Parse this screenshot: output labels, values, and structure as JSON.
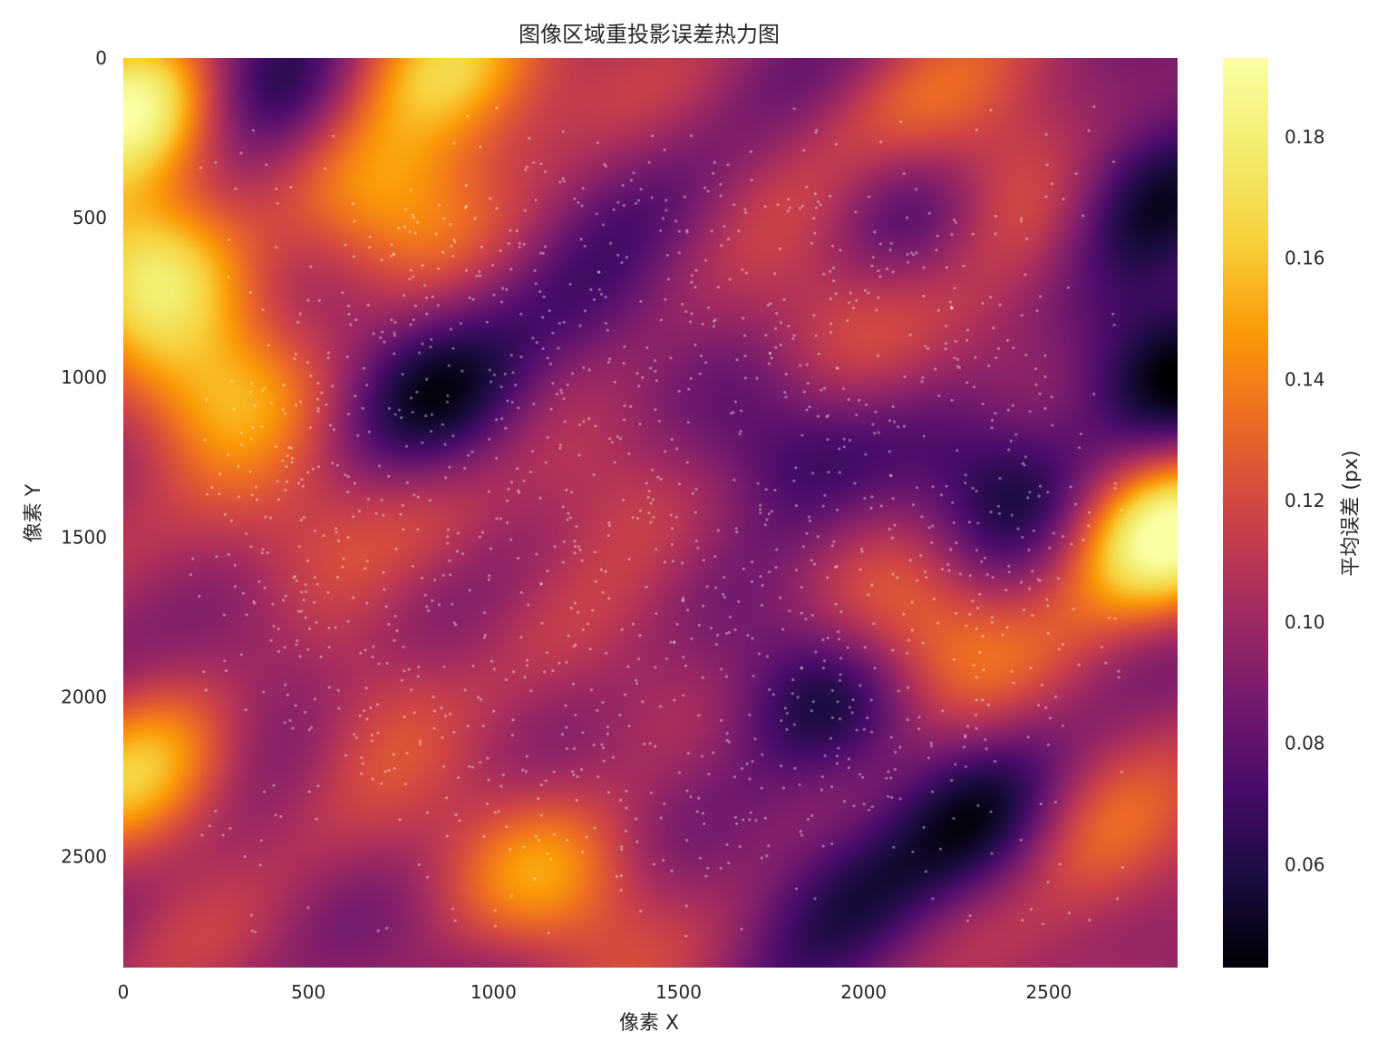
{
  "chart_data": {
    "type": "heatmap",
    "title": "图像区域重投影误差热力图",
    "xlabel": "像素 X",
    "ylabel": "像素 Y",
    "colorbar_label": "平均误差 (px)",
    "colormap": "inferno",
    "xlim": [
      0,
      2848
    ],
    "ylim": [
      2848,
      0
    ],
    "x_ticks": [
      "0",
      "500",
      "1000",
      "1500",
      "2000",
      "2500"
    ],
    "y_ticks": [
      "0",
      "500",
      "1000",
      "1500",
      "2000",
      "2500"
    ],
    "color_range": [
      0.043,
      0.193
    ],
    "colorbar_ticks": [
      "0.06",
      "0.08",
      "0.10",
      "0.12",
      "0.14",
      "0.16",
      "0.18"
    ],
    "points_overlay": "white semi-transparent scatter of detected feature points",
    "hotspots": [
      {
        "x": 30,
        "y": 150,
        "value": 0.193
      },
      {
        "x": 60,
        "y": 650,
        "value": 0.17
      },
      {
        "x": 870,
        "y": 30,
        "value": 0.17
      },
      {
        "x": 2800,
        "y": 1500,
        "value": 0.19
      },
      {
        "x": 60,
        "y": 2250,
        "value": 0.16
      },
      {
        "x": 250,
        "y": 1050,
        "value": 0.145
      },
      {
        "x": 700,
        "y": 450,
        "value": 0.14
      },
      {
        "x": 2150,
        "y": 1800,
        "value": 0.14
      },
      {
        "x": 1150,
        "y": 2550,
        "value": 0.145
      },
      {
        "x": 2600,
        "y": 2450,
        "value": 0.14
      },
      {
        "x": 2400,
        "y": 450,
        "value": 0.14
      },
      {
        "x": 650,
        "y": 1950,
        "value": 0.135
      },
      {
        "x": 1300,
        "y": 1350,
        "value": 0.13
      },
      {
        "x": 1900,
        "y": 850,
        "value": 0.13
      },
      {
        "x": 2150,
        "y": 200,
        "value": 0.13
      },
      {
        "x": 400,
        "y": 1450,
        "value": 0.13
      }
    ],
    "coldspots": [
      {
        "x": 350,
        "y": 50,
        "value": 0.045
      },
      {
        "x": 2800,
        "y": 450,
        "value": 0.045
      },
      {
        "x": 2800,
        "y": 1000,
        "value": 0.05
      },
      {
        "x": 850,
        "y": 1100,
        "value": 0.06
      },
      {
        "x": 1800,
        "y": 1250,
        "value": 0.06
      },
      {
        "x": 2350,
        "y": 2400,
        "value": 0.055
      },
      {
        "x": 2400,
        "y": 1350,
        "value": 0.06
      },
      {
        "x": 2150,
        "y": 450,
        "value": 0.06
      },
      {
        "x": 400,
        "y": 1900,
        "value": 0.065
      },
      {
        "x": 1900,
        "y": 2000,
        "value": 0.065
      },
      {
        "x": 1950,
        "y": 2550,
        "value": 0.065
      },
      {
        "x": 1300,
        "y": 850,
        "value": 0.07
      }
    ]
  }
}
